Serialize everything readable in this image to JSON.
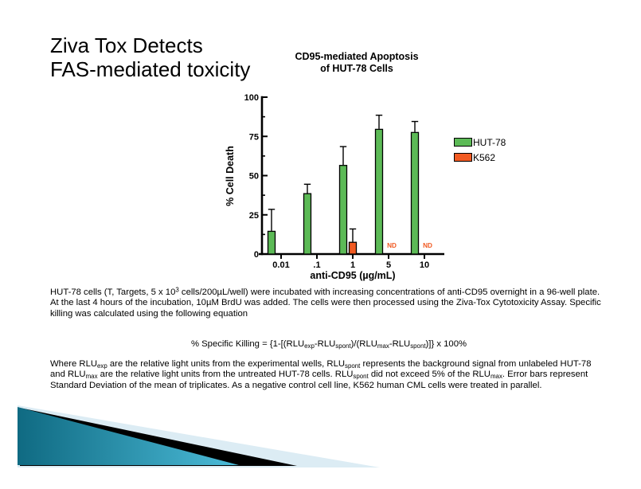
{
  "slide_title": {
    "line1": "Ziva Tox Detects",
    "line2": "FAS-mediated toxicity"
  },
  "chart_data": {
    "type": "bar",
    "title": "CD95-mediated Apoptosis of HUT-78 Cells",
    "title_lines": [
      "CD95-mediated Apoptosis",
      "of HUT-78 Cells"
    ],
    "xlabel": "anti-CD95 (µg/mL)",
    "ylabel": "% Cell Death",
    "ylim": [
      0,
      100
    ],
    "yticks": [
      0,
      25,
      50,
      75,
      100
    ],
    "categories": [
      "0.01",
      ".1",
      "1",
      "5",
      "10"
    ],
    "grid": false,
    "legend_position": "right",
    "nd_label": "ND",
    "nd_color": "#f15a22",
    "series": [
      {
        "name": "HUT-78",
        "color": "#5cba56",
        "values": [
          14.5,
          38.5,
          56.5,
          79.5,
          77.5
        ],
        "errors_up": [
          14,
          6,
          12,
          9,
          7
        ],
        "nd": [
          false,
          false,
          false,
          false,
          false
        ]
      },
      {
        "name": "K562",
        "color": "#f15a22",
        "values": [
          null,
          null,
          7.5,
          null,
          null
        ],
        "errors_up": [
          null,
          null,
          8.5,
          null,
          null
        ],
        "nd": [
          false,
          false,
          false,
          true,
          true
        ]
      }
    ]
  },
  "paragraphs": {
    "p1": [
      {
        "t": "HUT-78 cells (T, Targets, 5 x 10"
      },
      {
        "sup": "3"
      },
      {
        "t": " cells/200µL/well) were incubated with increasing concentrations of anti-CD95 overnight in a 96-well plate.  At the last 4 hours of the incubation, 10µM BrdU was added.  The cells were then processed using the Ziva-Tox Cytotoxicity Assay.  Specific killing was calculated using the following equation"
      }
    ],
    "equation": [
      {
        "t": "% Specific Killing = {1-[(RLU"
      },
      {
        "sub": "exp"
      },
      {
        "t": "-RLU"
      },
      {
        "sub": "spont"
      },
      {
        "t": ")/(RLU"
      },
      {
        "sub": "max"
      },
      {
        "t": "-RLU"
      },
      {
        "sub": "spont"
      },
      {
        "t": ")]} x 100%"
      }
    ],
    "p2": [
      {
        "t": "Where RLU"
      },
      {
        "sub": "exp"
      },
      {
        "t": " are the relative light units from the experimental wells, RLU"
      },
      {
        "sub": "spont"
      },
      {
        "t": " represents the background signal from unlabeled HUT-78 and RLU"
      },
      {
        "sub": "max"
      },
      {
        "t": " are the relative light units from the untreated HUT-78 cells. RLU"
      },
      {
        "sub": "spont"
      },
      {
        "t": " did not exceed 5% of the RLU"
      },
      {
        "sub": "max"
      },
      {
        "t": ".  Error bars represent Standard Deviation of the mean of triplicates.  As a negative control cell line, K562 human CML cells were treated in parallel."
      }
    ]
  },
  "decoration": {
    "teal_dark": "#0f6a82",
    "teal_light": "#4cbcd9",
    "black_band": "#000000",
    "pale_blue": "#dcecf4"
  }
}
